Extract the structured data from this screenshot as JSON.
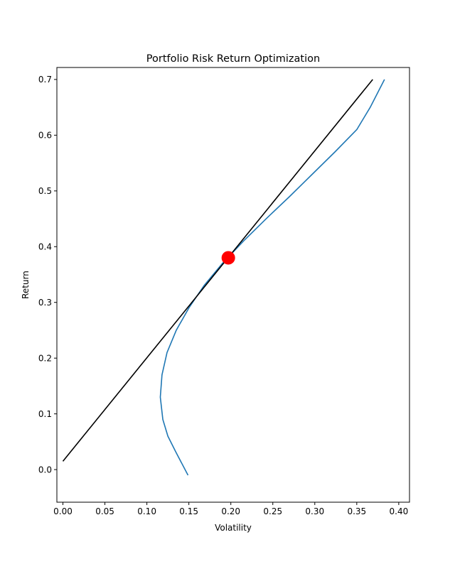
{
  "chart_data": {
    "type": "line",
    "title": "Portfolio Risk Return Optimization",
    "xlabel": "Volatility",
    "ylabel": "Return",
    "xlim": [
      -0.0072,
      0.4128
    ],
    "ylim": [
      -0.0585,
      0.7215
    ],
    "xticks": [
      {
        "value": 0.0,
        "label": "0.00"
      },
      {
        "value": 0.05,
        "label": "0.05"
      },
      {
        "value": 0.1,
        "label": "0.10"
      },
      {
        "value": 0.15,
        "label": "0.15"
      },
      {
        "value": 0.2,
        "label": "0.20"
      },
      {
        "value": 0.25,
        "label": "0.25"
      },
      {
        "value": 0.3,
        "label": "0.30"
      },
      {
        "value": 0.35,
        "label": "0.35"
      },
      {
        "value": 0.4,
        "label": "0.40"
      }
    ],
    "yticks": [
      {
        "value": 0.0,
        "label": "0.0"
      },
      {
        "value": 0.1,
        "label": "0.1"
      },
      {
        "value": 0.2,
        "label": "0.2"
      },
      {
        "value": 0.3,
        "label": "0.3"
      },
      {
        "value": 0.4,
        "label": "0.4"
      },
      {
        "value": 0.5,
        "label": "0.5"
      },
      {
        "value": 0.6,
        "label": "0.6"
      },
      {
        "value": 0.7,
        "label": "0.7"
      }
    ],
    "grid": false,
    "series": [
      {
        "kind": "frontier-curve",
        "color": "#1f77b4",
        "points": [
          [
            0.149,
            -0.01
          ],
          [
            0.135,
            0.03
          ],
          [
            0.125,
            0.06
          ],
          [
            0.119,
            0.09
          ],
          [
            0.116,
            0.13
          ],
          [
            0.118,
            0.17
          ],
          [
            0.124,
            0.21
          ],
          [
            0.135,
            0.25
          ],
          [
            0.15,
            0.29
          ],
          [
            0.168,
            0.33
          ],
          [
            0.19,
            0.37
          ],
          [
            0.215,
            0.41
          ],
          [
            0.242,
            0.45
          ],
          [
            0.27,
            0.49
          ],
          [
            0.297,
            0.53
          ],
          [
            0.324,
            0.57
          ],
          [
            0.35,
            0.61
          ],
          [
            0.366,
            0.65
          ],
          [
            0.383,
            0.7
          ]
        ]
      },
      {
        "kind": "capital-market-line",
        "color": "#000000",
        "points": [
          [
            0.0,
            0.015
          ],
          [
            0.369,
            0.7
          ]
        ]
      }
    ],
    "markers": [
      {
        "kind": "tangency-portfolio",
        "x": 0.197,
        "y": 0.38,
        "color": "#ff0000"
      }
    ]
  }
}
